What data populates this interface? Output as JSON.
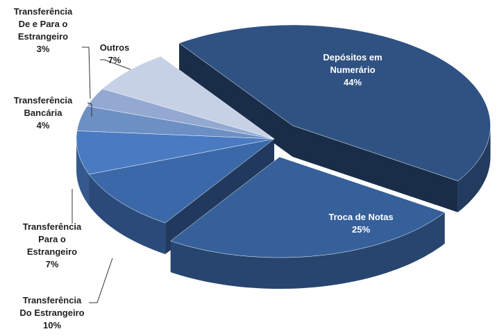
{
  "chart_data": {
    "type": "pie3d",
    "categories": [
      "Depósitos em\nNumerário",
      "Troca de Notas",
      "Transferência\nDo Estrangeiro",
      "Transferência\nPara o\nEstrangeiro",
      "Transferência\nBancária",
      "Transferência\nDe e Para o\nEstrangeiro",
      "Outros"
    ],
    "values": [
      44,
      25,
      10,
      7,
      4,
      3,
      7
    ],
    "value_labels": [
      "44%",
      "25%",
      "10%",
      "7%",
      "4%",
      "3%",
      "7%"
    ],
    "colors": [
      "#2f5282",
      "#36609a",
      "#3b68a8",
      "#4a7bc2",
      "#6c8fc4",
      "#93a9d2",
      "#c6d1e6"
    ],
    "exploded": [
      true,
      true,
      false,
      false,
      false,
      false,
      false
    ]
  }
}
